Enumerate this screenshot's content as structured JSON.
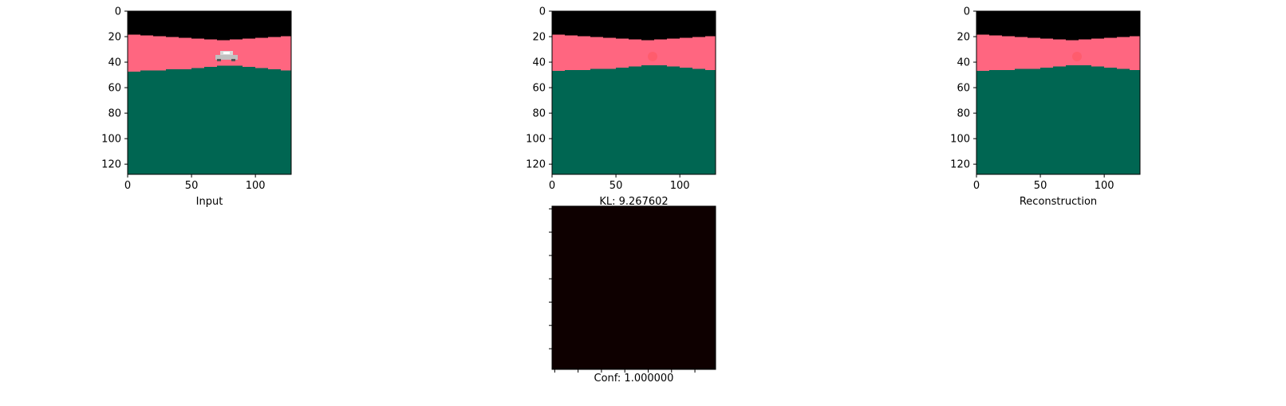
{
  "chart_data": [
    {
      "type": "image",
      "xlabel": "Input",
      "x_ticks": [
        0,
        50,
        100
      ],
      "y_ticks": [
        0,
        20,
        40,
        60,
        80,
        100,
        120
      ],
      "xlim": [
        0,
        128
      ],
      "ylim": [
        128,
        0
      ],
      "image_content": {
        "bands": [
          {
            "region": "sky",
            "color": "#000000"
          },
          {
            "region": "horizon",
            "color": "#ff6680"
          },
          {
            "region": "ground",
            "color": "#006652"
          }
        ],
        "object": {
          "kind": "car sprite",
          "x": 78,
          "y": 35,
          "colors": [
            "#c8c8c8",
            "#ffffff"
          ]
        }
      }
    },
    {
      "type": "image",
      "xlabel": "KL: 9.267602",
      "x_ticks": [
        0,
        50,
        100
      ],
      "y_ticks": [
        0,
        20,
        40,
        60,
        80,
        100,
        120
      ],
      "xlim": [
        0,
        128
      ],
      "ylim": [
        128,
        0
      ],
      "image_content": {
        "bands": [
          {
            "region": "sky",
            "color": "#000000"
          },
          {
            "region": "horizon",
            "color": "#ff6680"
          },
          {
            "region": "ground",
            "color": "#006652"
          }
        ],
        "object": {
          "kind": "blurred blob",
          "x": 79,
          "y": 35,
          "colors": [
            "#ff5a6a"
          ]
        }
      }
    },
    {
      "type": "image",
      "xlabel": "Reconstruction",
      "x_ticks": [
        0,
        50,
        100
      ],
      "y_ticks": [
        0,
        20,
        40,
        60,
        80,
        100,
        120
      ],
      "xlim": [
        0,
        128
      ],
      "ylim": [
        128,
        0
      ],
      "image_content": {
        "bands": [
          {
            "region": "sky",
            "color": "#000000"
          },
          {
            "region": "horizon",
            "color": "#ff6680"
          },
          {
            "region": "ground",
            "color": "#006652"
          }
        ],
        "object": {
          "kind": "blurred blob",
          "x": 79,
          "y": 35,
          "colors": [
            "#ff5a6a"
          ]
        }
      }
    },
    {
      "type": "heatmap",
      "xlabel": "Conf: 1.000000",
      "x_ticks_count": 7,
      "y_ticks_count": 7,
      "fill_color": "#0e0000"
    }
  ]
}
